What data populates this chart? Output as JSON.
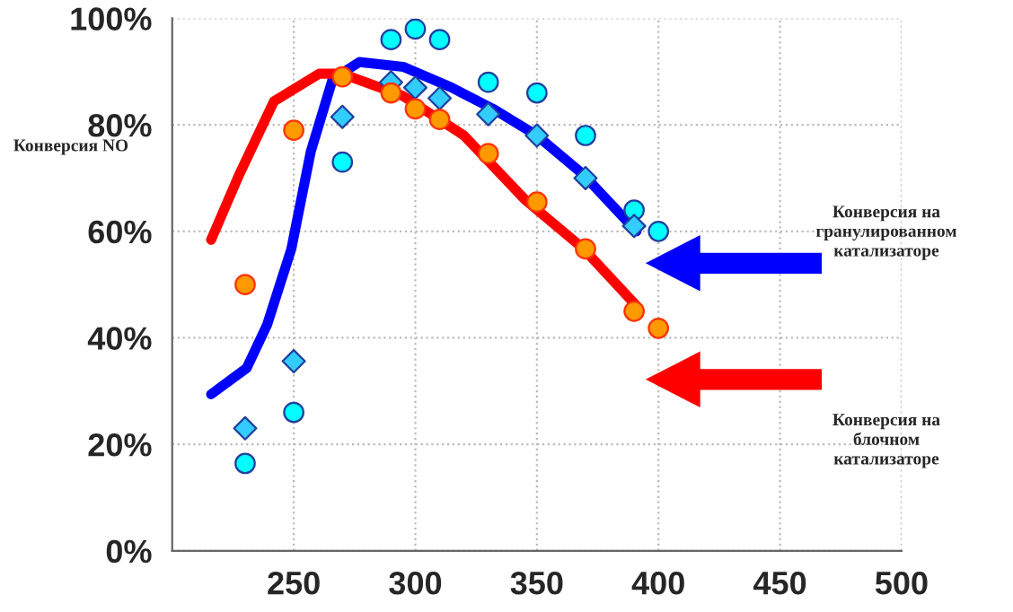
{
  "chart_data": {
    "type": "scatter",
    "ylabel": "Конверсия NO",
    "xlim": [
      200,
      500
    ],
    "xticks": [
      250,
      300,
      350,
      400,
      450,
      500
    ],
    "ylim": [
      0,
      100
    ],
    "yticks": [
      {
        "value": 0,
        "label": "0%"
      },
      {
        "value": 20,
        "label": "20%"
      },
      {
        "value": 40,
        "label": "40%"
      },
      {
        "value": 60,
        "label": "60%"
      },
      {
        "value": 80,
        "label": "80%"
      },
      {
        "value": 100,
        "label": "100%"
      }
    ],
    "grid": true,
    "legend": false,
    "series": [
      {
        "marker": "circle",
        "color": "#00ffff",
        "x": [
          230,
          250,
          270,
          290,
          300,
          310,
          330,
          350,
          370,
          390,
          400
        ],
        "values": [
          16.4,
          26,
          73,
          96,
          98,
          96,
          88,
          86,
          78,
          64,
          60
        ]
      },
      {
        "marker": "diamond",
        "color": "#33ccff",
        "x": [
          230,
          250,
          270,
          290,
          300,
          310,
          330,
          350,
          370,
          390
        ],
        "values": [
          23,
          35.6,
          81.5,
          88,
          87,
          85,
          82,
          78,
          70,
          61
        ]
      },
      {
        "marker": "circle",
        "color": "#ff9900",
        "x": [
          230,
          250,
          270,
          290,
          300,
          310,
          330,
          350,
          370,
          390,
          400
        ],
        "values": [
          50,
          79,
          89,
          86,
          83,
          81,
          74.6,
          65.5,
          56.7,
          45,
          41.8
        ]
      },
      {
        "type": "line",
        "marker": "none",
        "color": "#0000ff",
        "x": [
          216,
          230.6,
          239,
          249,
          257,
          266,
          277,
          295,
          315,
          332,
          350,
          369,
          391
        ],
        "values": [
          29.4,
          34.3,
          42.4,
          56.7,
          75,
          88.6,
          91.8,
          90.9,
          87,
          83,
          78,
          70.7,
          60
        ]
      },
      {
        "type": "line",
        "marker": "none",
        "color": "#ff0000",
        "x": [
          216,
          227.6,
          241.8,
          260.4,
          270,
          295,
          320,
          345,
          369,
          391
        ],
        "values": [
          58.4,
          70.7,
          84.4,
          89.6,
          89.6,
          85.4,
          78,
          66,
          56.8,
          46
        ]
      }
    ],
    "annotations": [
      "Конверсия на\nгранулированном\nкатализаторе",
      "Конверсия на\nблочном\nкатализаторе"
    ]
  }
}
